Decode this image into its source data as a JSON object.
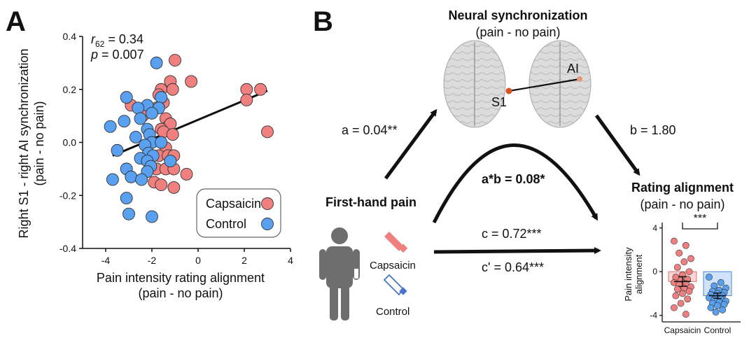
{
  "panels": {
    "a": "A",
    "b": "B"
  },
  "scatter": {
    "stat_r_base": "r",
    "stat_r_sub": "62",
    "stat_r_value": " = 0.34",
    "stat_p_italic": "p",
    "stat_p_value": " = 0.007",
    "legend": {
      "capsaicin": "Capsaicin",
      "control": "Control"
    },
    "colors": {
      "capsaicin": "#f08080",
      "control": "#5aa0f0"
    }
  },
  "mediation": {
    "title": "Neural synchronization",
    "title_sub": "(pain - no pain)",
    "region_s1": "S1",
    "region_ai": "AI",
    "path_a": "a = 0.04**",
    "path_b": "b = 1.80",
    "path_ab": "a*b = 0.08*",
    "path_c": "c = 0.72***",
    "path_cprime": "c' = 0.64***",
    "predictor": "First-hand pain",
    "icon_capsaicin": "Capsaicin",
    "icon_control": "Control",
    "outcome": "Rating alignment",
    "outcome_sub": "(pain - no pain)",
    "significance": "***",
    "icons": [
      "person-icon",
      "capsaicin-tube-icon",
      "control-tube-icon",
      "brain-icon"
    ]
  },
  "chart_data": [
    {
      "type": "scatter",
      "xlabel": "Pain intensity rating alignment",
      "xlabel_sub": "(pain - no pain)",
      "ylabel": "Right S1 - right AI synchronization",
      "ylabel_sub": "(pain - no pain)",
      "xlim": [
        -5,
        4
      ],
      "ylim": [
        -0.4,
        0.4
      ],
      "xticks": [
        -4,
        -2,
        0,
        2,
        4
      ],
      "yticks": [
        -0.4,
        -0.2,
        0.0,
        0.2,
        0.4
      ],
      "xtick_labels": [
        "-4",
        "-2",
        "0",
        "2",
        "4"
      ],
      "ytick_labels": [
        "-0.4",
        "-0.2",
        "0.0",
        "0.2",
        "0.4"
      ],
      "fit_line": {
        "x": [
          -3.7,
          3.0
        ],
        "y": [
          -0.05,
          0.195
        ]
      },
      "legend_position": "bottom-right",
      "series": [
        {
          "name": "Capsaicin",
          "points": [
            [
              -1.0,
              0.31
            ],
            [
              -0.3,
              0.23
            ],
            [
              -1.2,
              0.23
            ],
            [
              -1.6,
              0.2
            ],
            [
              -1.1,
              0.2
            ],
            [
              -1.7,
              0.18
            ],
            [
              -1.5,
              0.15
            ],
            [
              -1.8,
              0.13
            ],
            [
              -2.9,
              0.14
            ],
            [
              -2.4,
              0.1
            ],
            [
              -1.4,
              0.09
            ],
            [
              -1.3,
              0.06
            ],
            [
              -1.2,
              0.07
            ],
            [
              -1.6,
              0.05
            ],
            [
              -1.5,
              0.04
            ],
            [
              -1.1,
              0.03
            ],
            [
              -1.4,
              -0.02
            ],
            [
              -1.7,
              -0.05
            ],
            [
              -1.3,
              -0.05
            ],
            [
              -1.05,
              -0.05
            ],
            [
              -1.8,
              -0.1
            ],
            [
              -1.4,
              -0.1
            ],
            [
              -1.05,
              -0.1
            ],
            [
              -0.5,
              -0.12
            ],
            [
              -1.9,
              -0.15
            ],
            [
              -1.6,
              -0.16
            ],
            [
              -1.05,
              -0.17
            ],
            [
              2.1,
              0.2
            ],
            [
              2.7,
              0.2
            ],
            [
              2.1,
              0.16
            ],
            [
              3.0,
              0.04
            ]
          ]
        },
        {
          "name": "Control",
          "points": [
            [
              -1.8,
              0.3
            ],
            [
              -3.1,
              0.17
            ],
            [
              -1.6,
              0.17
            ],
            [
              -2.2,
              0.14
            ],
            [
              -2.6,
              0.13
            ],
            [
              -1.7,
              0.13
            ],
            [
              -2.0,
              0.11
            ],
            [
              -2.5,
              0.09
            ],
            [
              -3.2,
              0.08
            ],
            [
              -3.8,
              0.06
            ],
            [
              -2.2,
              0.05
            ],
            [
              -2.1,
              0.03
            ],
            [
              -2.7,
              0.02
            ],
            [
              -2.0,
              0.0
            ],
            [
              -1.6,
              0.0
            ],
            [
              -2.3,
              -0.01
            ],
            [
              -3.5,
              -0.03
            ],
            [
              -2.15,
              -0.04
            ],
            [
              -1.95,
              -0.05
            ],
            [
              -2.5,
              -0.06
            ],
            [
              -2.2,
              -0.07
            ],
            [
              -1.2,
              -0.07
            ],
            [
              -2.05,
              -0.09
            ],
            [
              -3.1,
              -0.1
            ],
            [
              -2.2,
              -0.11
            ],
            [
              -3.7,
              -0.14
            ],
            [
              -2.9,
              -0.13
            ],
            [
              -2.45,
              -0.14
            ],
            [
              -3.1,
              -0.21
            ],
            [
              -3.0,
              -0.27
            ],
            [
              -2.0,
              -0.28
            ]
          ]
        }
      ]
    },
    {
      "type": "bar",
      "ylabel": "Pain intensity alignment",
      "categories": [
        "Capsaicin",
        "Control"
      ],
      "values": [
        -0.9,
        -2.2
      ],
      "errors": [
        0.45,
        0.25
      ],
      "ylim": [
        -4.6,
        4.5
      ],
      "yticks": [
        -4,
        0,
        4
      ],
      "ytick_labels": [
        "-4",
        "0",
        "4"
      ],
      "points": [
        [
          2.8,
          2.4,
          1.7,
          1.2,
          0.9,
          0.4,
          0.0,
          -0.3,
          -0.5,
          -0.7,
          -0.8,
          -1.0,
          -1.1,
          -1.2,
          -1.4,
          -1.5,
          -1.6,
          -1.8,
          -2.0,
          -2.2,
          -2.5,
          -2.9,
          -3.3,
          -3.9
        ],
        [
          -0.5,
          -1.0,
          -1.3,
          -1.5,
          -1.7,
          -1.8,
          -1.9,
          -2.0,
          -2.1,
          -2.2,
          -2.3,
          -2.4,
          -2.5,
          -2.6,
          -2.7,
          -2.8,
          -2.9,
          -3.0,
          -3.1,
          -3.3,
          -3.5,
          -3.7
        ]
      ]
    }
  ]
}
